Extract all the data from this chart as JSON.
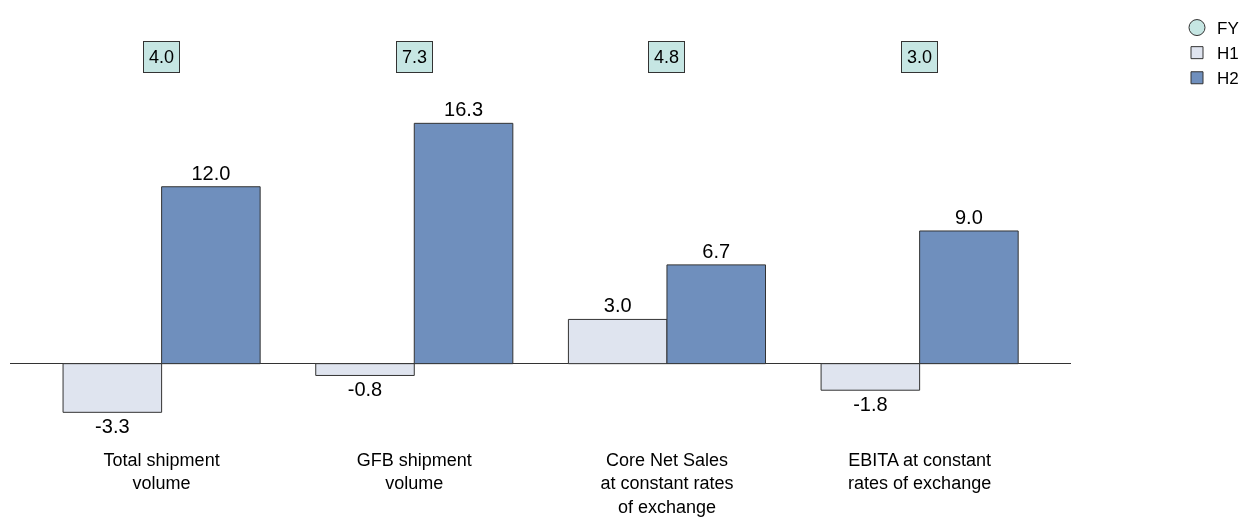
{
  "chart_data": {
    "type": "bar",
    "categories": [
      "Total shipment\nvolume",
      "GFB shipment\nvolume",
      "Core Net Sales\nat constant rates\nof exchange",
      "EBITA at constant\nrates of exchange"
    ],
    "series": [
      {
        "name": "FY",
        "type": "scatter",
        "color": "#c6e6e3",
        "values": [
          null,
          null,
          null,
          null
        ]
      },
      {
        "name": "H1",
        "color": "#dfe4ef",
        "values": [
          -3.3,
          -0.8,
          3.0,
          -1.8
        ],
        "value_labels": [
          "-3.3",
          "-0.8",
          "3.0",
          "-1.8"
        ]
      },
      {
        "name": "H2",
        "color": "#6f8fbd",
        "values": [
          12.0,
          16.3,
          6.7,
          9.0
        ],
        "value_labels": [
          "12.0",
          "16.3",
          "6.7",
          "9.0"
        ]
      }
    ],
    "annotations": [
      "4.0",
      "7.3",
      "4.8",
      "3.0"
    ],
    "legend": "top right",
    "tick_labels": "x"
  }
}
